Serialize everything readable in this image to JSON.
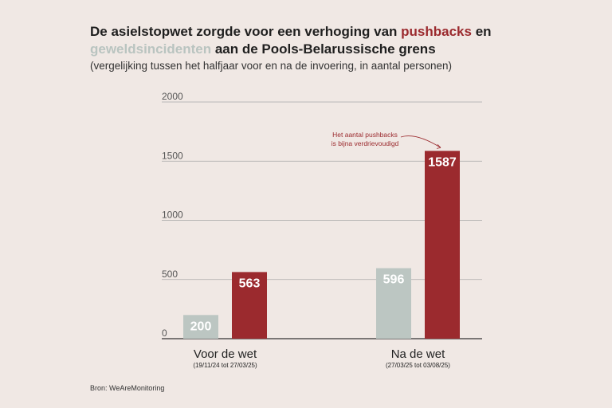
{
  "title": {
    "part1": "De asielstopwet zorgde voor een verhoging van ",
    "pushbacks": "pushbacks",
    "part2": " en ",
    "geweld": "geweldsincidenten",
    "part3": " aan de Pools-Belarussische grens"
  },
  "subtitle": "(vergelijking tussen het halfjaar voor en na de invoering, in aantal personen)",
  "source": "Bron: WeAreMonitoring",
  "colors": {
    "pushbacks": "#9b2a2e",
    "geweldsincidenten": "#bcc6c2",
    "grid": "#a9a9a9",
    "axis": "#333333",
    "background": "#f0e8e4"
  },
  "chart_data": {
    "type": "bar",
    "categories": [
      "Voor de wet",
      "Na de wet"
    ],
    "category_sublabels": [
      "(19/11/24 tot 27/03/25)",
      "(27/03/25 tot 03/08/25)"
    ],
    "series": [
      {
        "name": "geweldsincidenten",
        "values": [
          200,
          596
        ]
      },
      {
        "name": "pushbacks",
        "values": [
          563,
          1587
        ]
      }
    ],
    "ylim": [
      0,
      2000
    ],
    "yticks": [
      0,
      500,
      1000,
      1500,
      2000
    ],
    "grid": true,
    "annotation": {
      "lines": [
        "Het aantal pushbacks",
        "is bijna verdrievoudigd"
      ],
      "target_category": 1,
      "target_series": 1
    }
  }
}
